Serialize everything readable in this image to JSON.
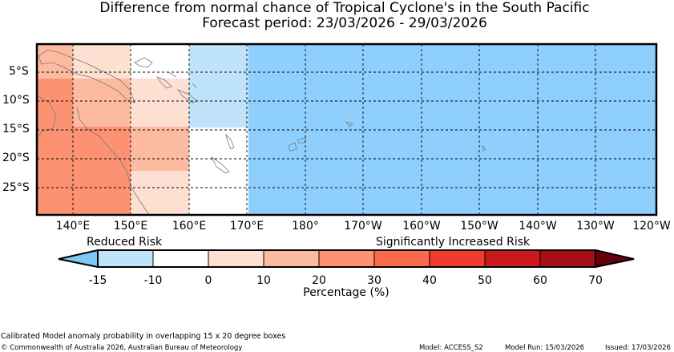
{
  "title": {
    "line1": "Difference from normal chance of Tropical Cyclone's in the South Pacific",
    "line2": "Forecast period: 23/03/2026 - 29/03/2026"
  },
  "map": {
    "lat_labels": [
      "5°S",
      "10°S",
      "15°S",
      "20°S",
      "25°S"
    ],
    "lon_labels": [
      "140°E",
      "150°E",
      "160°E",
      "170°E",
      "180°",
      "170°W",
      "160°W",
      "150°W",
      "140°W",
      "130°W",
      "120°W"
    ]
  },
  "legend": {
    "label_left": "Reduced Risk",
    "label_right": "Significantly Increased Risk",
    "ticks": [
      "-15",
      "-10",
      "0",
      "10",
      "20",
      "30",
      "40",
      "50",
      "60",
      "70"
    ],
    "axis_label": "Percentage (%)",
    "colors": {
      "under": "#7ec8f6",
      "bins": [
        "#bfe3fa",
        "#ffffff",
        "#fee0d2",
        "#fcbba1",
        "#fc9272",
        "#fb6a4a",
        "#ef3b2c",
        "#cb181d",
        "#a50f15"
      ],
      "over": "#67000d"
    }
  },
  "colors": {
    "light_blue": "#8ecffd",
    "pale_blue": "#bfe3fa",
    "pale_pink": "#fee0d2",
    "light_salmon": "#fcbba1",
    "salmon": "#fc9272"
  },
  "footer": {
    "note": "Calibrated Model anomaly probability in overlapping 15 x 20 degree boxes",
    "copyright": "© Commonwealth of Australia 2026, Australian Bureau of Meteorology",
    "model": "Model: ACCESS_S2",
    "model_run": "Model Run: 15/03/2026",
    "issued": "Issued: 17/03/2026"
  }
}
